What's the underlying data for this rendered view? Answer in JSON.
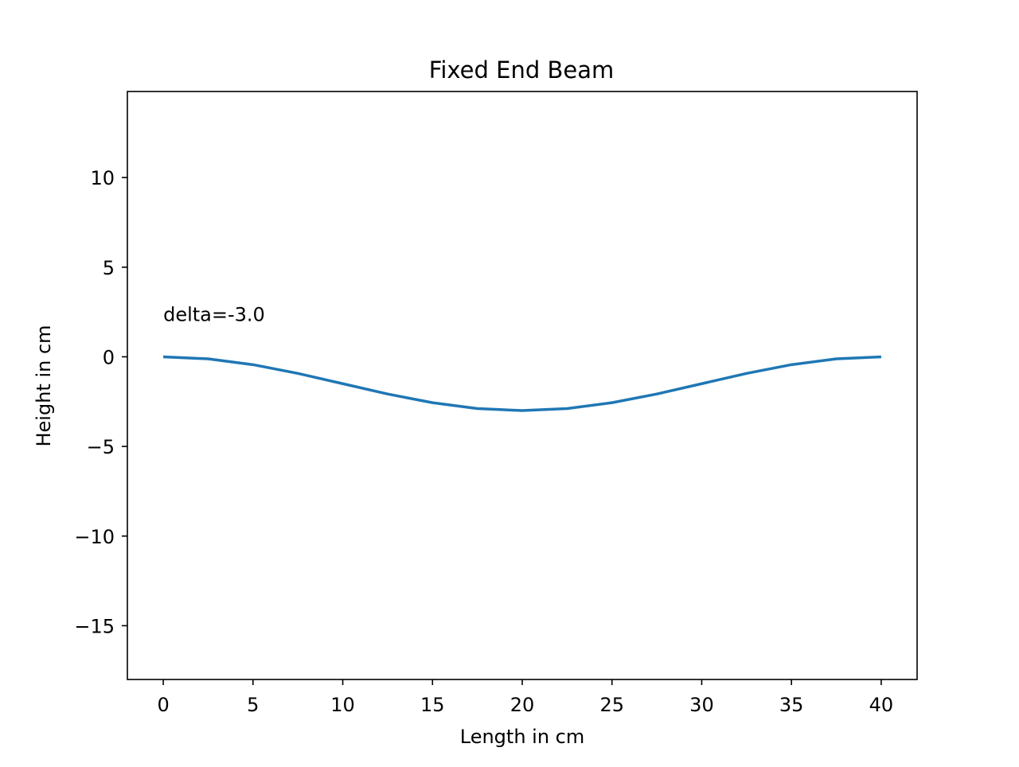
{
  "chart_data": {
    "type": "line",
    "title": "Fixed End Beam",
    "xlabel": "Length in cm",
    "ylabel": "Height in cm",
    "xlim": [
      -2,
      42
    ],
    "ylim": [
      -18,
      14.8
    ],
    "x_ticks": [
      0,
      5,
      10,
      15,
      20,
      25,
      30,
      35,
      40
    ],
    "y_ticks": [
      10,
      5,
      0,
      -5,
      -10,
      -15
    ],
    "x_tick_labels": [
      "0",
      "5",
      "10",
      "15",
      "20",
      "25",
      "30",
      "35",
      "40"
    ],
    "y_tick_labels": [
      "10",
      "5",
      "0",
      "−5",
      "−10",
      "−15"
    ],
    "grid": false,
    "series": [
      {
        "color": "#1f77b4",
        "x": [
          0,
          2.5,
          5,
          7.5,
          10,
          12.5,
          15,
          17.5,
          20,
          22.5,
          25,
          27.5,
          30,
          32.5,
          35,
          37.5,
          40
        ],
        "y": [
          0,
          -0.114,
          -0.439,
          -0.926,
          -1.5,
          -2.074,
          -2.561,
          -2.886,
          -3.0,
          -2.886,
          -2.561,
          -2.074,
          -1.5,
          -0.926,
          -0.439,
          -0.114,
          0
        ]
      }
    ],
    "annotations": [
      {
        "text": "delta=-3.0",
        "x": 0,
        "y": 2.0
      }
    ]
  }
}
